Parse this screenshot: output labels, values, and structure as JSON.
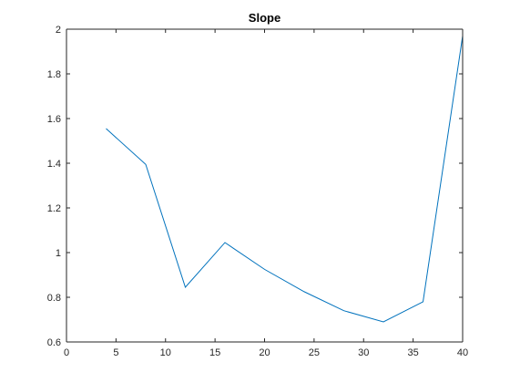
{
  "chart_data": {
    "type": "line",
    "title": "Slope",
    "xlabel": "",
    "ylabel": "",
    "xlim": [
      0,
      40
    ],
    "ylim": [
      0.6,
      2
    ],
    "xticks": [
      0,
      5,
      10,
      15,
      20,
      25,
      30,
      35,
      40
    ],
    "yticks": [
      0.6,
      0.8,
      1,
      1.2,
      1.4,
      1.6,
      1.8,
      2
    ],
    "xtick_labels": [
      "0",
      "5",
      "10",
      "15",
      "20",
      "25",
      "30",
      "35",
      "40"
    ],
    "ytick_labels": [
      "0.6",
      "0.8",
      "1",
      "1.2",
      "1.4",
      "1.6",
      "1.8",
      "2"
    ],
    "grid": false,
    "series": [
      {
        "color": "#0072BD",
        "x": [
          4,
          8,
          12,
          16,
          20,
          24,
          28,
          32,
          36,
          40
        ],
        "y": [
          1.555,
          1.395,
          0.845,
          1.045,
          0.925,
          0.825,
          0.74,
          0.69,
          0.78,
          1.97
        ]
      }
    ]
  }
}
